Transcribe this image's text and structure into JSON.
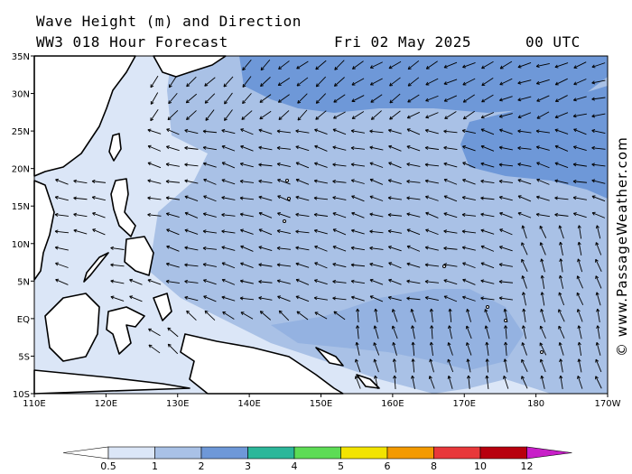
{
  "header": {
    "title": "Wave Height (m) and Direction",
    "model": "WW3 018 Hour Forecast",
    "date": "Fri 02 May 2025",
    "time": "00 UTC"
  },
  "credit": "© www.PassageWeather.com",
  "axes": {
    "lon_labels": [
      "110E",
      "120E",
      "130E",
      "140E",
      "150E",
      "160E",
      "170E",
      "180",
      "170W"
    ],
    "lat_labels": [
      "35N",
      "30N",
      "25N",
      "20N",
      "15N",
      "10N",
      "5N",
      "EQ",
      "5S",
      "10S"
    ]
  },
  "colorbar": {
    "labels": [
      "0.5",
      "1",
      "2",
      "3",
      "4",
      "5",
      "6",
      "8",
      "10",
      "12"
    ],
    "colors": [
      "#dbe6f7",
      "#a9c1e6",
      "#6e98d8",
      "#2cb79a",
      "#5ddc55",
      "#f2e400",
      "#f39a00",
      "#e8383a",
      "#b8000e",
      "#c81fc8"
    ]
  },
  "map_colors": {
    "very_light": "#dbe6f7",
    "light": "#a9c1e6",
    "medium": "#6e98d8",
    "land": "#ffffff",
    "coast": "#000000"
  },
  "arrow_color": "#000000"
}
